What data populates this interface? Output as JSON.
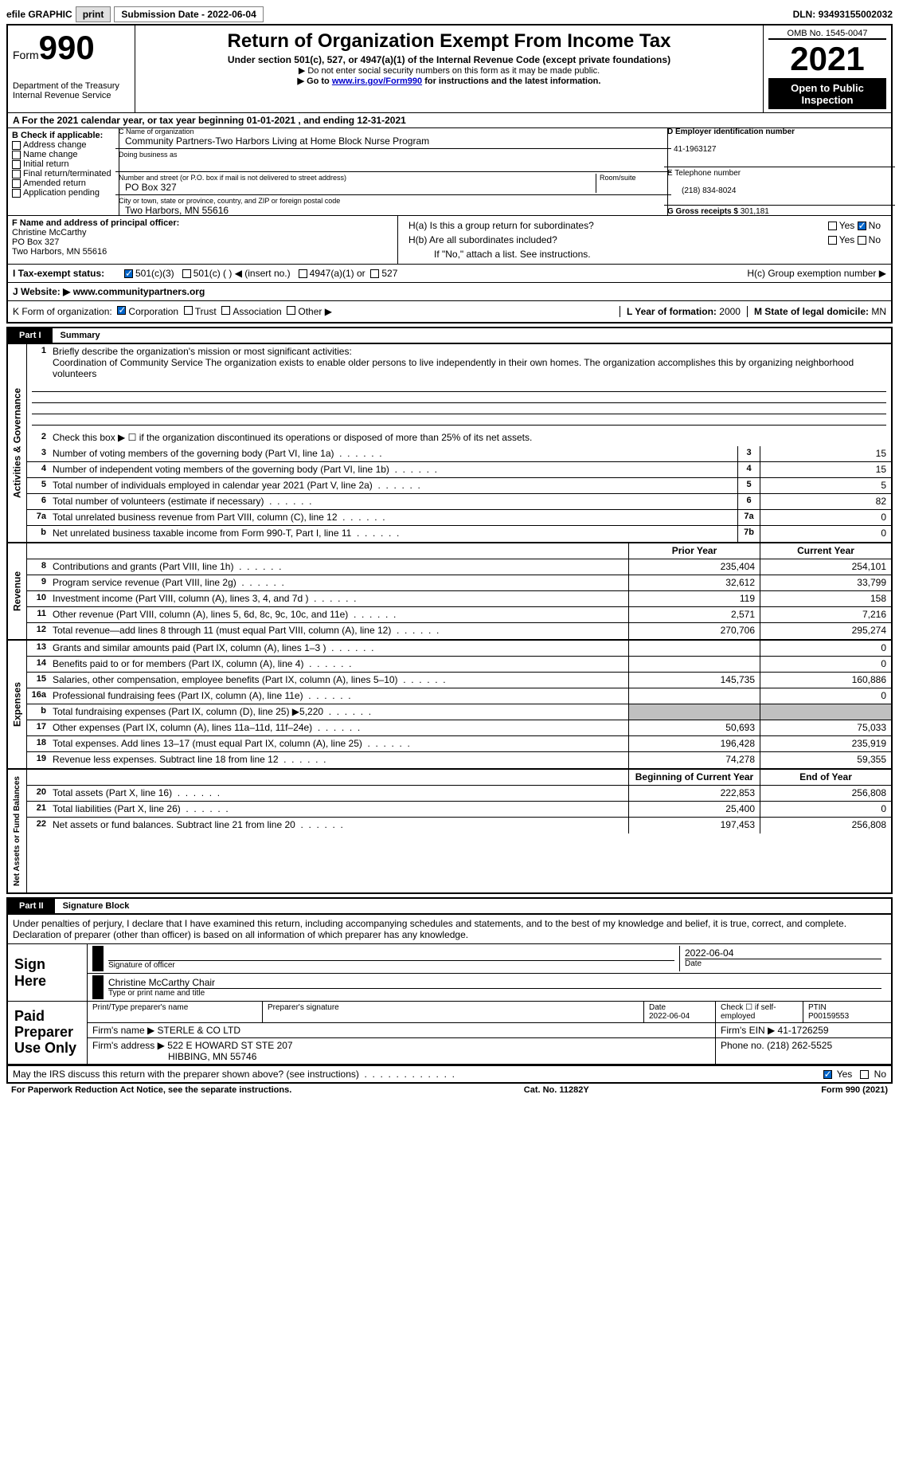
{
  "toolbar": {
    "efile": "efile GRAPHIC",
    "print": "print",
    "submission_label": "Submission Date - ",
    "submission_date": "2022-06-04",
    "dln_label": "DLN: ",
    "dln": "93493155002032"
  },
  "header": {
    "form_word": "Form",
    "form_number": "990",
    "dept": "Department of the Treasury\nInternal Revenue Service",
    "title": "Return of Organization Exempt From Income Tax",
    "subtitle": "Under section 501(c), 527, or 4947(a)(1) of the Internal Revenue Code (except private foundations)",
    "note1": "▶ Do not enter social security numbers on this form as it may be made public.",
    "note2_pre": "▶ Go to ",
    "note2_link": "www.irs.gov/Form990",
    "note2_post": " for instructions and the latest information.",
    "omb": "OMB No. 1545-0047",
    "year": "2021",
    "inspect": "Open to Public Inspection"
  },
  "row_a": {
    "text_pre": "A For the 2021 calendar year, or tax year beginning ",
    "begin": "01-01-2021",
    "mid": "  , and ending ",
    "end": "12-31-2021"
  },
  "section_b": {
    "b_label": "B Check if applicable:",
    "opts": [
      "Address change",
      "Name change",
      "Initial return",
      "Final return/terminated",
      "Amended return",
      "Application pending"
    ],
    "c_label": "C Name of organization",
    "c_name": "Community Partners-Two Harbors Living at Home Block Nurse Program",
    "dba_label": "Doing business as",
    "addr_label": "Number and street (or P.O. box if mail is not delivered to street address)",
    "room_label": "Room/suite",
    "addr": "PO Box 327",
    "city_label": "City or town, state or province, country, and ZIP or foreign postal code",
    "city": "Two Harbors, MN  55616",
    "d_label": "D Employer identification number",
    "d_val": "41-1963127",
    "e_label": "E Telephone number",
    "e_val": "(218) 834-8024",
    "g_label": "G Gross receipts $ ",
    "g_val": "301,181"
  },
  "section_f": {
    "f_label": "F Name and address of principal officer:",
    "f_name": "Christine McCarthy",
    "f_addr1": "PO Box 327",
    "f_addr2": "Two Harbors, MN  55616",
    "ha_label": "H(a)  Is this a group return for subordinates?",
    "hb_label": "H(b)  Are all subordinates included?",
    "hb_note": "If \"No,\" attach a list. See instructions.",
    "hc_label": "H(c)  Group exemption number ▶",
    "yes": "Yes",
    "no": "No"
  },
  "row_i": {
    "label": "I  Tax-exempt status:",
    "opt1": "501(c)(3)",
    "opt2": "501(c) (  ) ◀ (insert no.)",
    "opt3": "4947(a)(1) or",
    "opt4": "527"
  },
  "row_j": {
    "label": "J  Website: ▶  ",
    "val": "www.communitypartners.org"
  },
  "row_k": {
    "label": "K Form of organization:",
    "opts": [
      "Corporation",
      "Trust",
      "Association",
      "Other ▶"
    ],
    "l_label": "L Year of formation: ",
    "l_val": "2000",
    "m_label": "M State of legal domicile: ",
    "m_val": "MN"
  },
  "part1": {
    "num": "Part I",
    "title": "Summary",
    "vert_labels": [
      "Activities & Governance",
      "Revenue",
      "Expenses",
      "Net Assets or Fund Balances"
    ],
    "line1_label": "Briefly describe the organization's mission or most significant activities:",
    "line1_text": "Coordination of Community Service The organization exists to enable older persons to live independently in their own homes. The organization accomplishes this by organizing neighborhood volunteers",
    "line2": "Check this box ▶ ☐  if the organization discontinued its operations or disposed of more than 25% of its net assets.",
    "lines_gov": [
      {
        "n": "3",
        "t": "Number of voting members of the governing body (Part VI, line 1a)",
        "box": "3",
        "v": "15"
      },
      {
        "n": "4",
        "t": "Number of independent voting members of the governing body (Part VI, line 1b)",
        "box": "4",
        "v": "15"
      },
      {
        "n": "5",
        "t": "Total number of individuals employed in calendar year 2021 (Part V, line 2a)",
        "box": "5",
        "v": "5"
      },
      {
        "n": "6",
        "t": "Total number of volunteers (estimate if necessary)",
        "box": "6",
        "v": "82"
      },
      {
        "n": "7a",
        "t": "Total unrelated business revenue from Part VIII, column (C), line 12",
        "box": "7a",
        "v": "0"
      },
      {
        "n": "b",
        "t": "Net unrelated business taxable income from Form 990-T, Part I, line 11",
        "box": "7b",
        "v": "0"
      }
    ],
    "col_prior": "Prior Year",
    "col_current": "Current Year",
    "lines_rev": [
      {
        "n": "8",
        "t": "Contributions and grants (Part VIII, line 1h)",
        "p": "235,404",
        "c": "254,101"
      },
      {
        "n": "9",
        "t": "Program service revenue (Part VIII, line 2g)",
        "p": "32,612",
        "c": "33,799"
      },
      {
        "n": "10",
        "t": "Investment income (Part VIII, column (A), lines 3, 4, and 7d )",
        "p": "119",
        "c": "158"
      },
      {
        "n": "11",
        "t": "Other revenue (Part VIII, column (A), lines 5, 6d, 8c, 9c, 10c, and 11e)",
        "p": "2,571",
        "c": "7,216"
      },
      {
        "n": "12",
        "t": "Total revenue—add lines 8 through 11 (must equal Part VIII, column (A), line 12)",
        "p": "270,706",
        "c": "295,274"
      }
    ],
    "lines_exp": [
      {
        "n": "13",
        "t": "Grants and similar amounts paid (Part IX, column (A), lines 1–3 )",
        "p": "",
        "c": "0"
      },
      {
        "n": "14",
        "t": "Benefits paid to or for members (Part IX, column (A), line 4)",
        "p": "",
        "c": "0"
      },
      {
        "n": "15",
        "t": "Salaries, other compensation, employee benefits (Part IX, column (A), lines 5–10)",
        "p": "145,735",
        "c": "160,886"
      },
      {
        "n": "16a",
        "t": "Professional fundraising fees (Part IX, column (A), line 11e)",
        "p": "",
        "c": "0"
      },
      {
        "n": "b",
        "t": "Total fundraising expenses (Part IX, column (D), line 25) ▶5,220",
        "p": "shaded",
        "c": "shaded"
      },
      {
        "n": "17",
        "t": "Other expenses (Part IX, column (A), lines 11a–11d, 11f–24e)",
        "p": "50,693",
        "c": "75,033"
      },
      {
        "n": "18",
        "t": "Total expenses. Add lines 13–17 (must equal Part IX, column (A), line 25)",
        "p": "196,428",
        "c": "235,919"
      },
      {
        "n": "19",
        "t": "Revenue less expenses. Subtract line 18 from line 12",
        "p": "74,278",
        "c": "59,355"
      }
    ],
    "col_begin": "Beginning of Current Year",
    "col_end": "End of Year",
    "lines_net": [
      {
        "n": "20",
        "t": "Total assets (Part X, line 16)",
        "p": "222,853",
        "c": "256,808"
      },
      {
        "n": "21",
        "t": "Total liabilities (Part X, line 26)",
        "p": "25,400",
        "c": "0"
      },
      {
        "n": "22",
        "t": "Net assets or fund balances. Subtract line 21 from line 20",
        "p": "197,453",
        "c": "256,808"
      }
    ]
  },
  "part2": {
    "num": "Part II",
    "title": "Signature Block",
    "declare": "Under penalties of perjury, I declare that I have examined this return, including accompanying schedules and statements, and to the best of my knowledge and belief, it is true, correct, and complete. Declaration of preparer (other than officer) is based on all information of which preparer has any knowledge.",
    "sign_here": "Sign Here",
    "sig_officer": "Signature of officer",
    "sig_date": "2022-06-04",
    "date_label": "Date",
    "sig_name": "Christine McCarthy  Chair",
    "sig_name_label": "Type or print name and title",
    "paid_prep": "Paid Preparer Use Only",
    "prep_name_label": "Print/Type preparer's name",
    "prep_sig_label": "Preparer's signature",
    "prep_date_label": "Date",
    "prep_date": "2022-06-04",
    "prep_check_label": "Check ☐ if self-employed",
    "ptin_label": "PTIN",
    "ptin": "P00159553",
    "firm_name_label": "Firm's name    ▶ ",
    "firm_name": "STERLE & CO LTD",
    "firm_ein_label": "Firm's EIN ▶ ",
    "firm_ein": "41-1726259",
    "firm_addr_label": "Firm's address ▶ ",
    "firm_addr": "522 E HOWARD ST STE 207",
    "firm_city": "HIBBING, MN  55746",
    "firm_phone_label": "Phone no. ",
    "firm_phone": "(218) 262-5525",
    "discuss": "May the IRS discuss this return with the preparer shown above? (see instructions)",
    "yes": "Yes",
    "no": "No"
  },
  "footer": {
    "paperwork": "For Paperwork Reduction Act Notice, see the separate instructions.",
    "cat": "Cat. No. 11282Y",
    "form": "Form 990 (2021)"
  }
}
